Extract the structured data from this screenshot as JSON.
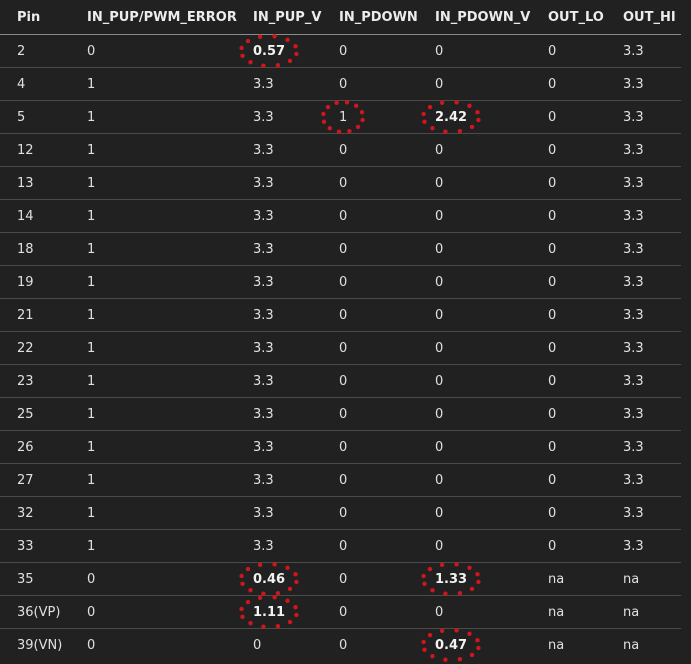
{
  "table": {
    "columns": [
      "Pin",
      "IN_PUP/PWM_ERROR",
      "IN_PUP_V",
      "IN_PDOWN",
      "IN_PDOWN_V",
      "OUT_LO",
      "OUT_HI"
    ],
    "rows": [
      [
        "2",
        "0",
        "0.57",
        "0",
        "0",
        "0",
        "3.3"
      ],
      [
        "4",
        "1",
        "3.3",
        "0",
        "0",
        "0",
        "3.3"
      ],
      [
        "5",
        "1",
        "3.3",
        "1",
        "2.42",
        "0",
        "3.3"
      ],
      [
        "12",
        "1",
        "3.3",
        "0",
        "0",
        "0",
        "3.3"
      ],
      [
        "13",
        "1",
        "3.3",
        "0",
        "0",
        "0",
        "3.3"
      ],
      [
        "14",
        "1",
        "3.3",
        "0",
        "0",
        "0",
        "3.3"
      ],
      [
        "18",
        "1",
        "3.3",
        "0",
        "0",
        "0",
        "3.3"
      ],
      [
        "19",
        "1",
        "3.3",
        "0",
        "0",
        "0",
        "3.3"
      ],
      [
        "21",
        "1",
        "3.3",
        "0",
        "0",
        "0",
        "3.3"
      ],
      [
        "22",
        "1",
        "3.3",
        "0",
        "0",
        "0",
        "3.3"
      ],
      [
        "23",
        "1",
        "3.3",
        "0",
        "0",
        "0",
        "3.3"
      ],
      [
        "25",
        "1",
        "3.3",
        "0",
        "0",
        "0",
        "3.3"
      ],
      [
        "26",
        "1",
        "3.3",
        "0",
        "0",
        "0",
        "3.3"
      ],
      [
        "27",
        "1",
        "3.3",
        "0",
        "0",
        "0",
        "3.3"
      ],
      [
        "32",
        "1",
        "3.3",
        "0",
        "0",
        "0",
        "3.3"
      ],
      [
        "33",
        "1",
        "3.3",
        "0",
        "0",
        "0",
        "3.3"
      ],
      [
        "35",
        "0",
        "0.46",
        "0",
        "1.33",
        "na",
        "na"
      ],
      [
        "36(VP)",
        "0",
        "1.11",
        "0",
        "0",
        "na",
        "na"
      ],
      [
        "39(VN)",
        "0",
        "0",
        "0",
        "0.47",
        "na",
        "na"
      ]
    ],
    "bold_cells": [
      [
        0,
        2
      ],
      [
        2,
        4
      ],
      [
        16,
        2
      ],
      [
        16,
        4
      ],
      [
        17,
        2
      ],
      [
        18,
        4
      ]
    ],
    "circled_cells": [
      [
        0,
        2
      ],
      [
        2,
        3
      ],
      [
        2,
        4
      ],
      [
        16,
        2
      ],
      [
        16,
        4
      ],
      [
        17,
        2
      ],
      [
        18,
        4
      ]
    ]
  },
  "colors": {
    "background": "#212121",
    "text": "#e0e0e0",
    "header_rule": "#8a8a8a",
    "row_rule": "#4b4b4b",
    "highlight_dots": "#d0161d"
  }
}
